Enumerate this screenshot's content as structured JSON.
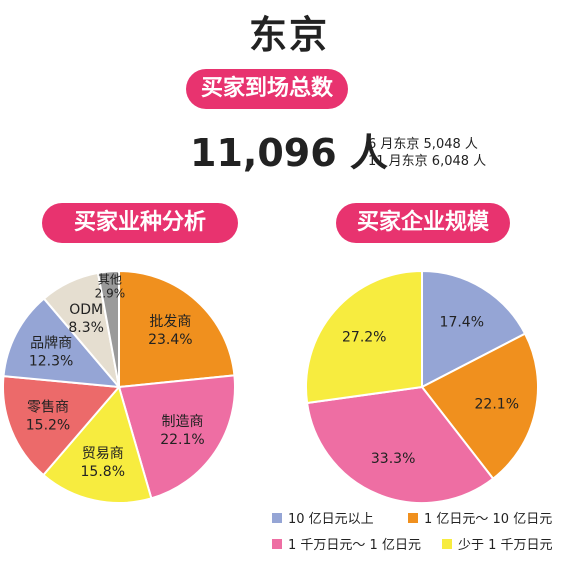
{
  "header": {
    "title": "东京",
    "total_pill": "买家到场总数",
    "total_value": "11,096 人",
    "sub1": "6 月东京 5,048 人",
    "sub2": "11 月东京 6,048 人",
    "left_pill": "买家业种分析",
    "right_pill": "买家企业规模"
  },
  "chart_data": [
    {
      "type": "pie",
      "title": "买家业种分析",
      "slices": [
        {
          "name": "批发商",
          "value": 23.4,
          "label": "23.4%",
          "color": "#f0901e"
        },
        {
          "name": "制造商",
          "value": 22.1,
          "label": "22.1%",
          "color": "#ee6ea3"
        },
        {
          "name": "贸易商",
          "value": 15.8,
          "label": "15.8%",
          "color": "#f7ec3f"
        },
        {
          "name": "零售商",
          "value": 15.2,
          "label": "15.2%",
          "color": "#ec6a6a"
        },
        {
          "name": "品牌商",
          "value": 12.3,
          "label": "12.3%",
          "color": "#95a5d5"
        },
        {
          "name": "ODM",
          "value": 8.3,
          "label": "8.3%",
          "color": "#e5ded0"
        },
        {
          "name": "其他",
          "value": 2.9,
          "label": "2.9%",
          "color": "#9a9a9a"
        }
      ]
    },
    {
      "type": "pie",
      "title": "买家企业规模",
      "slices": [
        {
          "name": "10 亿日元以上",
          "value": 17.4,
          "label": "17.4%",
          "color": "#95a5d5"
        },
        {
          "name": "1 亿日元～ 10 亿日元",
          "value": 22.1,
          "label": "22.1%",
          "color": "#f0901e"
        },
        {
          "name": "1 千万日元～ 1 亿日元",
          "value": 33.3,
          "label": "33.3%",
          "color": "#ee6ea3"
        },
        {
          "name": "少于 1 千万日元",
          "value": 27.2,
          "label": "27.2%",
          "color": "#f7ec3f"
        }
      ],
      "legend": [
        "10 亿日元以上",
        "1 亿日元～ 10 亿日元",
        "1 千万日元～ 1 亿日元",
        "少于 1 千万日元"
      ]
    }
  ]
}
